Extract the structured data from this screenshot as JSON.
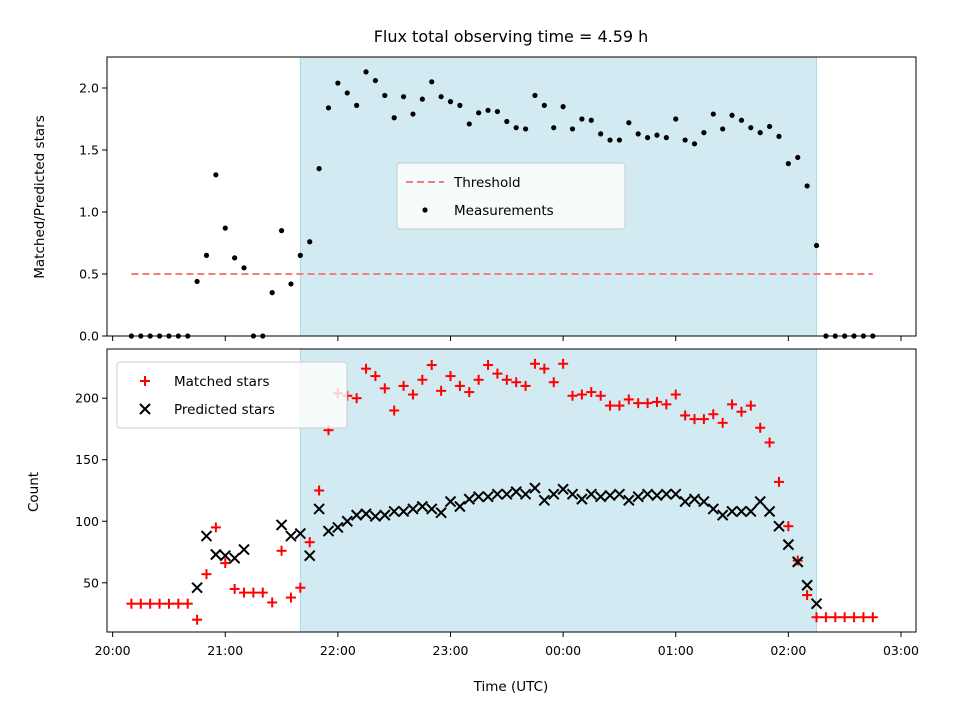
{
  "chart_data": [
    {
      "type": "scatter",
      "title": "Flux total observing time = 4.59 h",
      "xlabel": "",
      "ylabel": "Matched/Predicted stars",
      "ylim": [
        0,
        2.25
      ],
      "yticks": [
        "0.0",
        "0.5",
        "1.0",
        "1.5",
        "2.0"
      ],
      "ytick_values": [
        0,
        0.5,
        1.0,
        1.5,
        2.0
      ],
      "observing_window": [
        "21:40",
        "02:15"
      ],
      "shade_color": "#add8e6",
      "threshold": {
        "name": "Threshold",
        "value": 0.5,
        "x_range": [
          "20:10",
          "02:45"
        ],
        "color": "#f08080",
        "style": "dashed"
      },
      "legend": {
        "position": "center",
        "entries": [
          "Threshold",
          "Measurements"
        ]
      },
      "series": [
        {
          "name": "Measurements",
          "color": "#000000",
          "marker": "dot",
          "x": [
            "20:10",
            "20:15",
            "20:20",
            "20:25",
            "20:30",
            "20:35",
            "20:40",
            "20:45",
            "20:50",
            "20:55",
            "21:00",
            "21:05",
            "21:10",
            "21:15",
            "21:20",
            "21:25",
            "21:30",
            "21:35",
            "21:40",
            "21:45",
            "21:50",
            "21:55",
            "22:00",
            "22:05",
            "22:10",
            "22:15",
            "22:20",
            "22:25",
            "22:30",
            "22:35",
            "22:40",
            "22:45",
            "22:50",
            "22:55",
            "23:00",
            "23:05",
            "23:10",
            "23:15",
            "23:20",
            "23:25",
            "23:30",
            "23:35",
            "23:40",
            "23:45",
            "23:50",
            "23:55",
            "00:00",
            "00:05",
            "00:10",
            "00:15",
            "00:20",
            "00:25",
            "00:30",
            "00:35",
            "00:40",
            "00:45",
            "00:50",
            "00:55",
            "01:00",
            "01:05",
            "01:10",
            "01:15",
            "01:20",
            "01:25",
            "01:30",
            "01:35",
            "01:40",
            "01:45",
            "01:50",
            "01:55",
            "02:00",
            "02:05",
            "02:10",
            "02:15",
            "02:20",
            "02:25",
            "02:30",
            "02:35",
            "02:40",
            "02:45"
          ],
          "y": [
            0,
            0,
            0,
            0,
            0,
            0,
            0,
            0.44,
            0.65,
            1.3,
            0.87,
            0.63,
            0.55,
            0,
            0,
            0.35,
            0.85,
            0.42,
            0.65,
            0.76,
            1.35,
            1.84,
            2.04,
            1.96,
            1.86,
            2.13,
            2.06,
            1.94,
            1.76,
            1.93,
            1.79,
            1.91,
            2.05,
            1.93,
            1.89,
            1.86,
            1.71,
            1.8,
            1.82,
            1.81,
            1.73,
            1.68,
            1.67,
            1.94,
            1.86,
            1.68,
            1.85,
            1.67,
            1.75,
            1.74,
            1.63,
            1.58,
            1.58,
            1.72,
            1.63,
            1.6,
            1.62,
            1.6,
            1.75,
            1.58,
            1.55,
            1.64,
            1.79,
            1.67,
            1.78,
            1.74,
            1.68,
            1.64,
            1.69,
            1.61,
            1.39,
            1.44,
            1.21,
            0.73,
            0,
            0,
            0,
            0,
            0,
            0
          ]
        }
      ]
    },
    {
      "type": "scatter",
      "title": "",
      "xlabel": "Time (UTC)",
      "ylabel": "Count",
      "xlim": [
        "19:57",
        "03:08"
      ],
      "xticks": [
        "20:00",
        "21:00",
        "22:00",
        "23:00",
        "00:00",
        "01:00",
        "02:00",
        "03:00"
      ],
      "ylim": [
        10,
        240
      ],
      "yticks": [
        "50",
        "100",
        "150",
        "200"
      ],
      "ytick_values": [
        50,
        100,
        150,
        200
      ],
      "observing_window": [
        "21:40",
        "02:15"
      ],
      "shade_color": "#add8e6",
      "legend": {
        "position": "top-left",
        "entries": [
          "Matched stars",
          "Predicted stars"
        ]
      },
      "series": [
        {
          "name": "Matched stars",
          "color": "#ff0000",
          "marker": "plus",
          "x": [
            "20:10",
            "20:15",
            "20:20",
            "20:25",
            "20:30",
            "20:35",
            "20:40",
            "20:45",
            "20:50",
            "20:55",
            "21:00",
            "21:05",
            "21:10",
            "21:15",
            "21:20",
            "21:25",
            "21:30",
            "21:35",
            "21:40",
            "21:45",
            "21:50",
            "21:55",
            "22:00",
            "22:05",
            "22:10",
            "22:15",
            "22:20",
            "22:25",
            "22:30",
            "22:35",
            "22:40",
            "22:45",
            "22:50",
            "22:55",
            "23:00",
            "23:05",
            "23:10",
            "23:15",
            "23:20",
            "23:25",
            "23:30",
            "23:35",
            "23:40",
            "23:45",
            "23:50",
            "23:55",
            "00:00",
            "00:05",
            "00:10",
            "00:15",
            "00:20",
            "00:25",
            "00:30",
            "00:35",
            "00:40",
            "00:45",
            "00:50",
            "00:55",
            "01:00",
            "01:05",
            "01:10",
            "01:15",
            "01:20",
            "01:25",
            "01:30",
            "01:35",
            "01:40",
            "01:45",
            "01:50",
            "01:55",
            "02:00",
            "02:05",
            "02:10",
            "02:15",
            "02:20",
            "02:25",
            "02:30",
            "02:35",
            "02:40",
            "02:45"
          ],
          "y": [
            33,
            33,
            33,
            33,
            33,
            33,
            33,
            20,
            57,
            95,
            66,
            45,
            42,
            42,
            42,
            34,
            76,
            38,
            46,
            83,
            125,
            174,
            204,
            202,
            200,
            224,
            218,
            208,
            190,
            210,
            203,
            215,
            227,
            206,
            218,
            210,
            205,
            215,
            227,
            220,
            215,
            213,
            210,
            228,
            224,
            213,
            228,
            202,
            203,
            205,
            202,
            194,
            194,
            199,
            196,
            196,
            197,
            195,
            203,
            186,
            183,
            183,
            187,
            180,
            195,
            189,
            194,
            176,
            164,
            132,
            96,
            68,
            40,
            22,
            22,
            22,
            22,
            22,
            22,
            22
          ]
        },
        {
          "name": "Predicted stars",
          "color": "#000000",
          "marker": "x",
          "x": [
            "20:45",
            "20:50",
            "20:55",
            "21:00",
            "21:05",
            "21:10",
            "21:30",
            "21:35",
            "21:40",
            "21:45",
            "21:50",
            "21:55",
            "22:00",
            "22:05",
            "22:10",
            "22:15",
            "22:20",
            "22:25",
            "22:30",
            "22:35",
            "22:40",
            "22:45",
            "22:50",
            "22:55",
            "23:00",
            "23:05",
            "23:10",
            "23:15",
            "23:20",
            "23:25",
            "23:30",
            "23:35",
            "23:40",
            "23:45",
            "23:50",
            "23:55",
            "00:00",
            "00:05",
            "00:10",
            "00:15",
            "00:20",
            "00:25",
            "00:30",
            "00:35",
            "00:40",
            "00:45",
            "00:50",
            "00:55",
            "01:00",
            "01:05",
            "01:10",
            "01:15",
            "01:20",
            "01:25",
            "01:30",
            "01:35",
            "01:40",
            "01:45",
            "01:50",
            "01:55",
            "02:00",
            "02:05",
            "02:10",
            "02:15"
          ],
          "y": [
            46,
            88,
            73,
            72,
            70,
            77,
            97,
            88,
            90,
            72,
            110,
            92,
            95,
            100,
            105,
            106,
            104,
            105,
            108,
            108,
            110,
            112,
            110,
            107,
            116,
            112,
            118,
            120,
            120,
            122,
            122,
            124,
            122,
            127,
            117,
            122,
            126,
            122,
            118,
            122,
            120,
            121,
            122,
            117,
            120,
            122,
            121,
            122,
            122,
            116,
            118,
            116,
            110,
            105,
            108,
            108,
            108,
            116,
            108,
            96,
            81,
            67,
            48,
            33
          ]
        }
      ]
    }
  ]
}
